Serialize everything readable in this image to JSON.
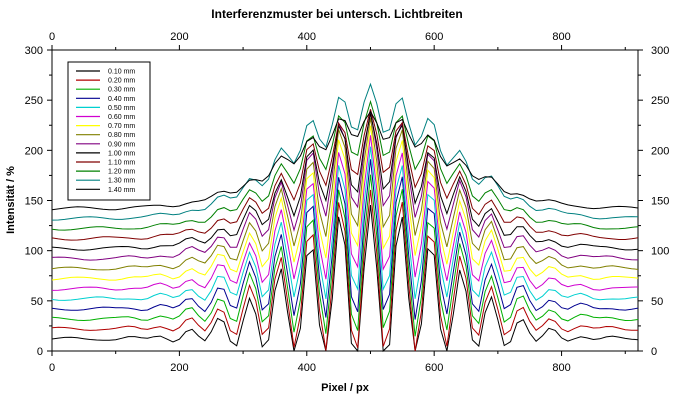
{
  "chart_data": {
    "type": "line",
    "title": "Interferenzmuster bei untersch. Lichtbreiten",
    "xlabel": "Pixel / px",
    "ylabel": "Intensität / %",
    "xlim": [
      0,
      920
    ],
    "ylim": [
      0,
      300
    ],
    "x_ticks": [
      0,
      200,
      400,
      600,
      800
    ],
    "y_ticks": [
      0,
      50,
      100,
      150,
      200,
      250,
      300
    ],
    "x_tick_labels": [
      "0",
      "200",
      "400",
      "600",
      "800"
    ],
    "y_tick_labels": [
      "0",
      "50",
      "100",
      "150",
      "200",
      "250",
      "300"
    ],
    "grid": false,
    "legend_position": "top-left",
    "x_sample_step": 10,
    "series": [
      {
        "name": "0.10 mm",
        "color": "#000000",
        "baseline": 12,
        "peak": 135,
        "fringe": 0.62
      },
      {
        "name": "0.20 mm",
        "color": "#b00000",
        "baseline": 22,
        "peak": 140,
        "fringe": 0.6
      },
      {
        "name": "0.30 mm",
        "color": "#00b000",
        "baseline": 32,
        "peak": 144,
        "fringe": 0.57
      },
      {
        "name": "0.40 mm",
        "color": "#000090",
        "baseline": 42,
        "peak": 148,
        "fringe": 0.54
      },
      {
        "name": "0.50 mm",
        "color": "#00d0d0",
        "baseline": 52,
        "peak": 150,
        "fringe": 0.5
      },
      {
        "name": "0.60 mm",
        "color": "#d000d0",
        "baseline": 62,
        "peak": 152,
        "fringe": 0.46
      },
      {
        "name": "0.70 mm",
        "color": "#ffff00",
        "baseline": 72,
        "peak": 153,
        "fringe": 0.42
      },
      {
        "name": "0.80 mm",
        "color": "#808000",
        "baseline": 82,
        "peak": 152,
        "fringe": 0.38
      },
      {
        "name": "0.90 mm",
        "color": "#800080",
        "baseline": 92,
        "peak": 148,
        "fringe": 0.34
      },
      {
        "name": "1.00 mm",
        "color": "#000000",
        "baseline": 102,
        "peak": 135,
        "fringe": 0.3
      },
      {
        "name": "1.10 mm",
        "color": "#800000",
        "baseline": 112,
        "peak": 128,
        "fringe": 0.26
      },
      {
        "name": "1.20 mm",
        "color": "#008000",
        "baseline": 122,
        "peak": 125,
        "fringe": 0.22
      },
      {
        "name": "1.30 mm",
        "color": "#008080",
        "baseline": 132,
        "peak": 133,
        "fringe": 0.18
      },
      {
        "name": "1.40 mm",
        "color": "#000000",
        "baseline": 142,
        "peak": 97,
        "fringe": 0.14
      }
    ]
  }
}
